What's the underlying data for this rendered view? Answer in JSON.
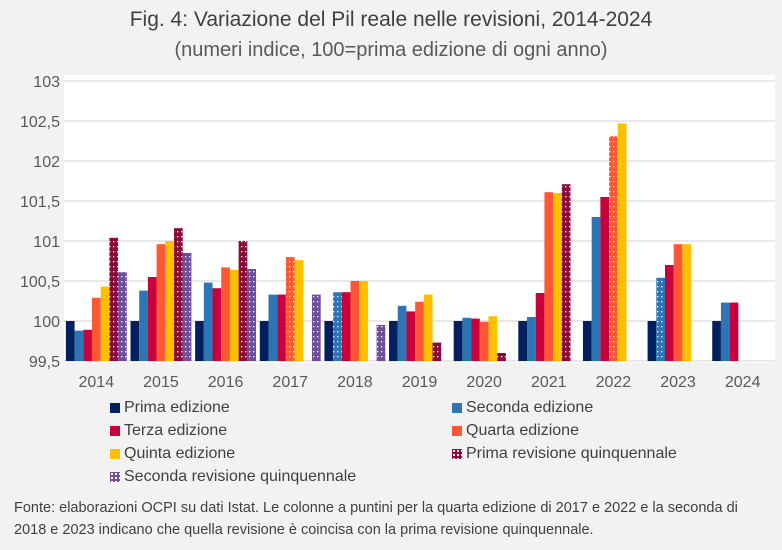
{
  "chart_data": {
    "type": "bar",
    "title": "Fig. 4: Variazione del Pil reale nelle revisioni, 2014-2024",
    "subtitle": "(numeri indice, 100=prima edizione di ogni anno)",
    "categories": [
      "2014",
      "2015",
      "2016",
      "2017",
      "2018",
      "2019",
      "2020",
      "2021",
      "2022",
      "2023",
      "2024"
    ],
    "ylim": [
      99.5,
      103
    ],
    "yticks": [
      "99,5",
      "100",
      "100,5",
      "101",
      "101,5",
      "102",
      "102,5",
      "103"
    ],
    "ytick_values": [
      99.5,
      100,
      100.5,
      101,
      101.5,
      102,
      102.5,
      103
    ],
    "grid": true,
    "legend_position": "bottom",
    "series": [
      {
        "name": "Prima edizione",
        "color": "#002060",
        "pattern": "solid",
        "values": [
          100,
          100,
          100,
          100,
          100,
          100,
          100,
          100,
          100,
          100,
          100
        ]
      },
      {
        "name": "Seconda edizione",
        "color": "#2e75b6",
        "pattern": "solid",
        "values": [
          99.88,
          100.38,
          100.48,
          100.33,
          100.36,
          100.19,
          100.04,
          100.05,
          101.3,
          100.54,
          100.23
        ]
      },
      {
        "name": "Terza edizione",
        "color": "#c9003c",
        "pattern": "solid",
        "values": [
          99.89,
          100.55,
          100.41,
          100.33,
          100.36,
          100.12,
          100.03,
          100.35,
          101.55,
          100.7,
          100.23
        ]
      },
      {
        "name": "Quarta edizione",
        "color": "#ff5733",
        "pattern": "solid",
        "values": [
          100.29,
          100.96,
          100.67,
          100.8,
          100.5,
          100.24,
          99.99,
          101.61,
          102.31,
          100.96,
          null
        ]
      },
      {
        "name": "Quinta edizione",
        "color": "#ffc000",
        "pattern": "solid",
        "values": [
          100.43,
          101.0,
          100.64,
          100.76,
          100.5,
          100.33,
          100.06,
          101.6,
          102.47,
          100.96,
          null
        ]
      },
      {
        "name": "Prima revisione quinquennale",
        "color": "#8b0a3c",
        "pattern": "dotted",
        "values": [
          101.04,
          101.16,
          101.0,
          null,
          null,
          99.73,
          99.6,
          101.71,
          null,
          null,
          null
        ]
      },
      {
        "name": "Seconda revisione quinquennale",
        "color": "#6f4e9c",
        "pattern": "dotted",
        "values": [
          100.61,
          100.85,
          100.65,
          100.33,
          99.95,
          null,
          null,
          null,
          null,
          null,
          null
        ]
      }
    ],
    "dotted_points": [
      {
        "series": "Quarta edizione",
        "category": "2017"
      },
      {
        "series": "Quarta edizione",
        "category": "2022"
      },
      {
        "series": "Seconda edizione",
        "category": "2018"
      },
      {
        "series": "Seconda edizione",
        "category": "2023"
      }
    ]
  },
  "note": "Fonte: elaborazioni OCPI su dati Istat. Le colonne a puntini per la quarta edizione di 2017 e 2022 e la seconda di 2018 e 2023 indicano che quella revisione è coincisa con la prima revisione quinquennale."
}
